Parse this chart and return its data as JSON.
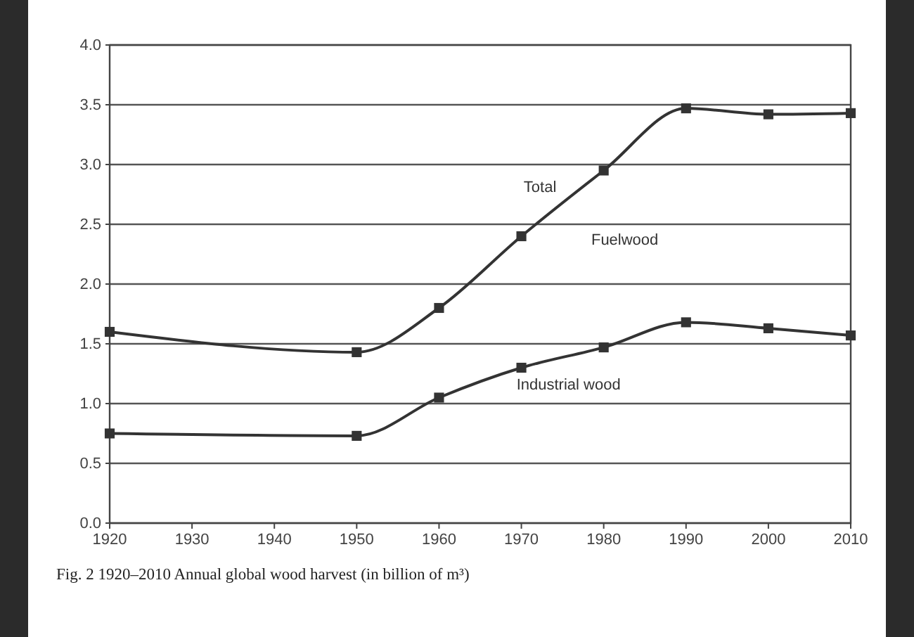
{
  "chart_data": {
    "type": "line",
    "x": [
      1920,
      1950,
      1960,
      1970,
      1980,
      1990,
      2000,
      2010
    ],
    "series": [
      {
        "name": "Total",
        "color": "#333333",
        "values": [
          1.6,
          1.43,
          1.8,
          2.4,
          2.95,
          3.47,
          3.42,
          3.43
        ]
      },
      {
        "name": "Industrial wood",
        "color": "#333333",
        "values": [
          0.75,
          0.73,
          1.05,
          1.3,
          1.47,
          1.68,
          1.63,
          1.57
        ]
      }
    ],
    "xlim": [
      1920,
      2010
    ],
    "xticks": [
      1920,
      1930,
      1940,
      1950,
      1960,
      1970,
      1980,
      1990,
      2000,
      2010
    ],
    "ylim": [
      0,
      4
    ],
    "yticks": [
      {
        "value": 0,
        "label": "0.0"
      },
      {
        "value": 0.5,
        "label": "0.5"
      },
      {
        "value": 1,
        "label": "1.0"
      },
      {
        "value": 1.5,
        "label": "1.5"
      },
      {
        "value": 2,
        "label": "2.0"
      },
      {
        "value": 2.5,
        "label": "2.5"
      },
      {
        "value": 3,
        "label": "3.0"
      },
      {
        "value": 3.5,
        "label": "3.5"
      },
      {
        "value": 4,
        "label": "4.0"
      }
    ],
    "grid": "y",
    "marker": "square",
    "line_style": "solid",
    "annotations": [
      "Fuelwood",
      "Fig. 2 1920–2010 Annual global wood harvest (in billion of m³)"
    ]
  }
}
